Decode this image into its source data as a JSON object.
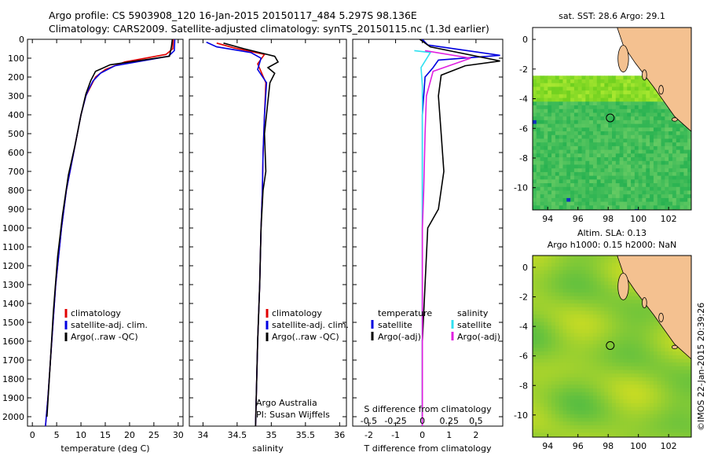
{
  "header": {
    "line1": "Argo profile: CS 5903908_120 16-Jan-2015 20150117_484 5.297S 98.136E",
    "line2": "Climatology: CARS2009. Satellite-adjusted climatology: synTS_20150115.nc (1.3d earlier)"
  },
  "side_text": "©IMOS 22-Jan-2015 20:39:26",
  "colors": {
    "climatology": "#e00000",
    "satellite_adj": "#0000e0",
    "argo": "#000000",
    "salinity_satellite": "#30e0f0",
    "salinity_argo": "#e020e0",
    "land": "#f4c190"
  },
  "chart_data": [
    {
      "id": "temperature",
      "type": "line",
      "xlabel": "temperature (deg C)",
      "ylabel": "",
      "xlim": [
        -1,
        31
      ],
      "ylim": [
        2050,
        0
      ],
      "xticks": [
        "0",
        "5",
        "10",
        "15",
        "20",
        "25",
        "30"
      ],
      "xtick_values": [
        0,
        5,
        10,
        15,
        20,
        25,
        30
      ],
      "yticks": [
        0,
        100,
        200,
        300,
        400,
        500,
        600,
        700,
        800,
        900,
        1000,
        1100,
        1200,
        1300,
        1400,
        1500,
        1600,
        1700,
        1800,
        1900,
        2000
      ],
      "legend": [
        "climatology",
        "satellite-adj. clim.",
        "Argo(..raw -QC)"
      ],
      "series": [
        {
          "name": "climatology",
          "color": "#e00000",
          "points": [
            [
              29,
              0
            ],
            [
              28.9,
              50
            ],
            [
              27.5,
              80
            ],
            [
              19,
              120
            ],
            [
              15,
              160
            ],
            [
              13,
              200
            ],
            [
              12,
              250
            ],
            [
              11,
              300
            ],
            [
              10,
              400
            ],
            [
              8.5,
              600
            ],
            [
              7,
              800
            ],
            [
              6,
              1000
            ],
            [
              4.8,
              1300
            ],
            [
              4,
              1600
            ],
            [
              3.2,
              1900
            ],
            [
              2.7,
              2050
            ]
          ]
        },
        {
          "name": "satellite-adj. clim.",
          "color": "#0000e0",
          "points": [
            [
              29.3,
              0
            ],
            [
              29.2,
              60
            ],
            [
              28,
              90
            ],
            [
              17,
              140
            ],
            [
              14,
              180
            ],
            [
              12.5,
              220
            ],
            [
              11.5,
              270
            ],
            [
              11,
              300
            ],
            [
              10,
              400
            ],
            [
              8.5,
              600
            ],
            [
              7,
              800
            ],
            [
              6,
              1000
            ],
            [
              4.8,
              1300
            ],
            [
              4,
              1600
            ],
            [
              3.2,
              1900
            ],
            [
              2.7,
              2050
            ]
          ]
        },
        {
          "name": "Argo(..raw -QC)",
          "color": "#000000",
          "points": [
            [
              28.8,
              0
            ],
            [
              28.6,
              40
            ],
            [
              28.2,
              90
            ],
            [
              16,
              135
            ],
            [
              13,
              170
            ],
            [
              12,
              220
            ],
            [
              11,
              290
            ],
            [
              10,
              400
            ],
            [
              8.8,
              560
            ],
            [
              7.4,
              720
            ],
            [
              6.2,
              930
            ],
            [
              5.2,
              1150
            ],
            [
              4.3,
              1450
            ],
            [
              3.6,
              1750
            ],
            [
              3,
              2000
            ]
          ]
        }
      ]
    },
    {
      "id": "salinity",
      "type": "line",
      "xlabel": "salinity",
      "xlim": [
        33.8,
        36.1
      ],
      "ylim": [
        2050,
        0
      ],
      "xticks": [
        "34",
        "34.5",
        "35",
        "35.5",
        "36"
      ],
      "xtick_values": [
        34,
        34.5,
        35,
        35.5,
        36
      ],
      "legend": [
        "climatology",
        "satellite-adj. clim.",
        "Argo(..raw -QC)"
      ],
      "annotations": [
        "Argo Australia",
        "PI: Susan Wijffels"
      ],
      "series": [
        {
          "name": "climatology",
          "color": "#e00000",
          "points": [
            [
              34.2,
              20
            ],
            [
              34.45,
              45
            ],
            [
              34.9,
              80
            ],
            [
              34.8,
              130
            ],
            [
              34.92,
              230
            ],
            [
              34.9,
              400
            ],
            [
              34.88,
              600
            ],
            [
              34.87,
              800
            ],
            [
              34.85,
              1000
            ],
            [
              34.83,
              1300
            ],
            [
              34.8,
              1600
            ],
            [
              34.78,
              1900
            ],
            [
              34.77,
              2050
            ]
          ]
        },
        {
          "name": "satellite-adj. clim.",
          "color": "#0000e0",
          "points": [
            [
              34.05,
              15
            ],
            [
              34.2,
              40
            ],
            [
              34.7,
              70
            ],
            [
              34.85,
              100
            ],
            [
              34.8,
              160
            ],
            [
              34.93,
              230
            ],
            [
              34.9,
              400
            ],
            [
              34.88,
              600
            ],
            [
              34.87,
              800
            ],
            [
              34.85,
              1000
            ],
            [
              34.83,
              1300
            ],
            [
              34.8,
              1600
            ],
            [
              34.78,
              1900
            ],
            [
              34.77,
              2050
            ]
          ]
        },
        {
          "name": "Argo(..raw -QC)",
          "color": "#000000",
          "points": [
            [
              34.3,
              20
            ],
            [
              34.6,
              50
            ],
            [
              35.05,
              90
            ],
            [
              35.1,
              120
            ],
            [
              34.95,
              150
            ],
            [
              35.05,
              180
            ],
            [
              34.98,
              230
            ],
            [
              34.95,
              330
            ],
            [
              34.9,
              500
            ],
            [
              34.92,
              700
            ],
            [
              34.88,
              800
            ],
            [
              34.85,
              1000
            ],
            [
              34.83,
              1300
            ],
            [
              34.8,
              1600
            ],
            [
              34.78,
              1900
            ],
            [
              34.77,
              2050
            ]
          ]
        }
      ]
    },
    {
      "id": "difference",
      "type": "line",
      "xlabel": "T difference from climatology",
      "x2label": "S difference from climatology",
      "xlim": [
        -2.6,
        3.0
      ],
      "ylim": [
        2050,
        0
      ],
      "xticks": [
        "-2",
        "-1",
        "0",
        "1",
        "2"
      ],
      "xtick_values": [
        -2,
        -1,
        0,
        1,
        2
      ],
      "x2ticks": [
        "-0.5",
        "-0.25",
        "0",
        "0.25",
        "0.5"
      ],
      "x2tick_values": [
        -0.5,
        -0.25,
        0,
        0.25,
        0.5
      ],
      "legend_left_title": "temperature",
      "legend_right_title": "salinity",
      "legend_left": [
        "satellite",
        "Argo(-adj)"
      ],
      "legend_right": [
        "satellite",
        "Argo(-adj)"
      ],
      "series": [
        {
          "name": "temperature satellite",
          "color": "#0000e0",
          "points": [
            [
              0,
              0
            ],
            [
              0.2,
              30
            ],
            [
              2.9,
              85
            ],
            [
              0.6,
              110
            ],
            [
              0.4,
              150
            ],
            [
              0.1,
              200
            ],
            [
              0,
              400
            ],
            [
              0,
              1000
            ],
            [
              0,
              2050
            ]
          ]
        },
        {
          "name": "temperature Argo(-adj)",
          "color": "#000000",
          "points": [
            [
              -0.1,
              0
            ],
            [
              0.3,
              40
            ],
            [
              2.9,
              115
            ],
            [
              1.6,
              140
            ],
            [
              0.7,
              190
            ],
            [
              0.6,
              300
            ],
            [
              0.7,
              500
            ],
            [
              0.8,
              700
            ],
            [
              0.6,
              900
            ],
            [
              0.2,
              1000
            ],
            [
              0.1,
              1300
            ],
            [
              0,
              1600
            ],
            [
              0,
              2050
            ]
          ]
        },
        {
          "name": "salinity satellite",
          "color": "#30e0f0",
          "points": [
            [
              -0.3,
              60
            ],
            [
              0.3,
              70
            ],
            [
              -0.05,
              150
            ],
            [
              0,
              250
            ],
            [
              0,
              400
            ],
            [
              0,
              1000
            ],
            [
              0,
              2050
            ]
          ]
        },
        {
          "name": "salinity Argo(-adj)",
          "color": "#e020e0",
          "points": [
            [
              0.1,
              60
            ],
            [
              1.8,
              100
            ],
            [
              0.4,
              170
            ],
            [
              0.15,
              300
            ],
            [
              0.1,
              500
            ],
            [
              0.05,
              800
            ],
            [
              0,
              1000
            ],
            [
              0,
              1300
            ],
            [
              0,
              2050
            ]
          ]
        }
      ]
    },
    {
      "id": "sst_map",
      "type": "heatmap",
      "title": "sat. SST: 28.6 Argo: 29.1",
      "xlim": [
        93,
        103.5
      ],
      "ylim": [
        -11.5,
        0.8
      ],
      "xticks": [
        "94",
        "96",
        "98",
        "100",
        "102"
      ],
      "xtick_values": [
        94,
        96,
        98,
        100,
        102
      ],
      "yticks": [
        "0",
        "-2",
        "-4",
        "-6",
        "-8",
        "-10"
      ],
      "ytick_values": [
        0,
        -2,
        -4,
        -6,
        -8,
        -10
      ],
      "argo_position": [
        98.136,
        -5.297
      ],
      "data_start_lat": -2.3
    },
    {
      "id": "sla_map",
      "type": "heatmap",
      "title": "Altim. SLA: 0.13",
      "subtitle": "Argo h1000: 0.15 h2000: NaN",
      "xlim": [
        93,
        103.5
      ],
      "ylim": [
        -11.5,
        0.8
      ],
      "xticks": [
        "94",
        "96",
        "98",
        "100",
        "102"
      ],
      "xtick_values": [
        94,
        96,
        98,
        100,
        102
      ],
      "yticks": [
        "0",
        "-2",
        "-4",
        "-6",
        "-8",
        "-10"
      ],
      "ytick_values": [
        0,
        -2,
        -4,
        -6,
        -8,
        -10
      ],
      "argo_position": [
        98.136,
        -5.297
      ]
    }
  ]
}
